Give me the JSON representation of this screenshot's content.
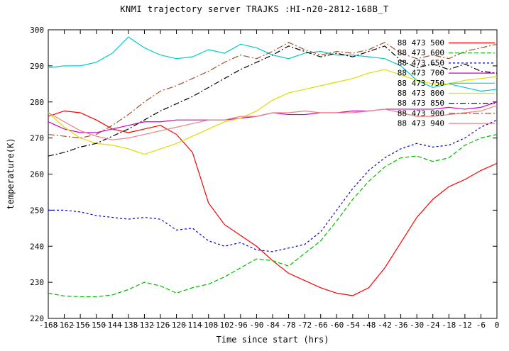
{
  "chart_data": {
    "type": "line",
    "title": "KNMI trajectory server TRAJKS :HI-n20-2812-168B_T",
    "xlabel": "Time since start (hrs)",
    "ylabel": "temperature(K)",
    "xlim": [
      -168,
      0
    ],
    "ylim": [
      220,
      300
    ],
    "grid": false,
    "legend_position": "top-right",
    "x_ticks": [
      -168,
      -162,
      -156,
      -150,
      -144,
      -138,
      -132,
      -126,
      -120,
      -114,
      -108,
      -102,
      -96,
      -90,
      -84,
      -78,
      -72,
      -66,
      -60,
      -54,
      -48,
      -42,
      -36,
      -30,
      -24,
      -18,
      -12,
      -6,
      0
    ],
    "y_ticks": [
      220,
      230,
      240,
      250,
      260,
      270,
      280,
      290,
      300
    ],
    "x": [
      -168,
      -162,
      -156,
      -150,
      -144,
      -138,
      -132,
      -126,
      -120,
      -114,
      -108,
      -102,
      -96,
      -90,
      -84,
      -78,
      -72,
      -66,
      -60,
      -54,
      -48,
      -42,
      -36,
      -30,
      -24,
      -18,
      -12,
      -6,
      0
    ],
    "series": [
      {
        "name": "88 473 500",
        "color": "#ff0000",
        "dash": "",
        "values": [
          276,
          277.5,
          277,
          275,
          272.5,
          271.5,
          272.5,
          273.5,
          271,
          266,
          252,
          246,
          243,
          240,
          236,
          232.5,
          230.5,
          228.5,
          227,
          226.3,
          228.5,
          234,
          241,
          248,
          253,
          256.5,
          258.5,
          261,
          263
        ]
      },
      {
        "name": "88 473 600",
        "color": "#00bb00",
        "dash": "6 3",
        "values": [
          227,
          226.2,
          226,
          226,
          226.5,
          228,
          230,
          229,
          227,
          228.5,
          229.5,
          231.5,
          234,
          236.5,
          236,
          234.5,
          238,
          241.5,
          247,
          253,
          258,
          262,
          264.5,
          265,
          263.5,
          264.5,
          268,
          270,
          271
        ]
      },
      {
        "name": "88 473 650",
        "color": "#0000cc",
        "dash": "3 3",
        "values": [
          250,
          250,
          249.5,
          248.5,
          248,
          247.5,
          248,
          247.5,
          244.5,
          245,
          241.5,
          240,
          241,
          239,
          238.5,
          239.5,
          240.5,
          244,
          250,
          256,
          261,
          264.5,
          267,
          268.5,
          267.5,
          268,
          270,
          273,
          275
        ]
      },
      {
        "name": "88 473 700",
        "color": "#cc00cc",
        "dash": "",
        "values": [
          274.5,
          272.5,
          271.5,
          271.5,
          272.5,
          273.5,
          274.5,
          274.5,
          275,
          275,
          275,
          275,
          275.5,
          276,
          277,
          276.5,
          276.5,
          277,
          277,
          277.5,
          277.5,
          278,
          278,
          278,
          278,
          278.5,
          278,
          278.5,
          280
        ]
      },
      {
        "name": "88 473 750",
        "color": "#00cccc",
        "dash": "",
        "values": [
          289.5,
          290,
          290,
          291,
          293.5,
          298,
          295,
          293,
          292,
          292.5,
          294.5,
          293.5,
          296,
          295,
          293,
          292,
          293.5,
          294,
          293,
          293,
          292.5,
          292,
          290,
          286,
          284,
          285,
          284,
          283,
          283.5
        ]
      },
      {
        "name": "88 473 800",
        "color": "#dddd00",
        "dash": "",
        "values": [
          277,
          273,
          270,
          268.5,
          268,
          267,
          265.5,
          267,
          268.5,
          270.5,
          272.5,
          274.5,
          275.5,
          277.5,
          280.5,
          282.5,
          283.5,
          284.5,
          285.5,
          286.5,
          288,
          289,
          287.5,
          286,
          285,
          285,
          286,
          286.5,
          287
        ]
      },
      {
        "name": "88 473 850",
        "color": "#000000",
        "dash": "8 3 2 3",
        "values": [
          265,
          266,
          267.5,
          268.5,
          270.5,
          272.5,
          275,
          277.5,
          279.5,
          281.5,
          284,
          286.5,
          289,
          291,
          293,
          295.5,
          294,
          292.5,
          293.5,
          292.5,
          294,
          295.5,
          291.5,
          289.5,
          290.5,
          289,
          290.5,
          288.5,
          288
        ]
      },
      {
        "name": "88 473 900",
        "color": "#a0522d",
        "dash": "9 3 2 3",
        "values": [
          271,
          270.5,
          270,
          271,
          273.5,
          276.5,
          280,
          283,
          284.5,
          286.5,
          288.5,
          291,
          293,
          292,
          294,
          296.5,
          294.5,
          293,
          294,
          293.5,
          294.5,
          296.5,
          293.5,
          292,
          293,
          292,
          294,
          295,
          296
        ]
      },
      {
        "name": "88 473 940",
        "color": "#f08080",
        "dash": "",
        "values": [
          277,
          274.5,
          272,
          270.5,
          269.5,
          270,
          271,
          272,
          273,
          274,
          275,
          275,
          276,
          276,
          277,
          277,
          277.5,
          277,
          277,
          277,
          277.5,
          278,
          277,
          276,
          276,
          276.5,
          277,
          277.5,
          279
        ]
      }
    ]
  }
}
